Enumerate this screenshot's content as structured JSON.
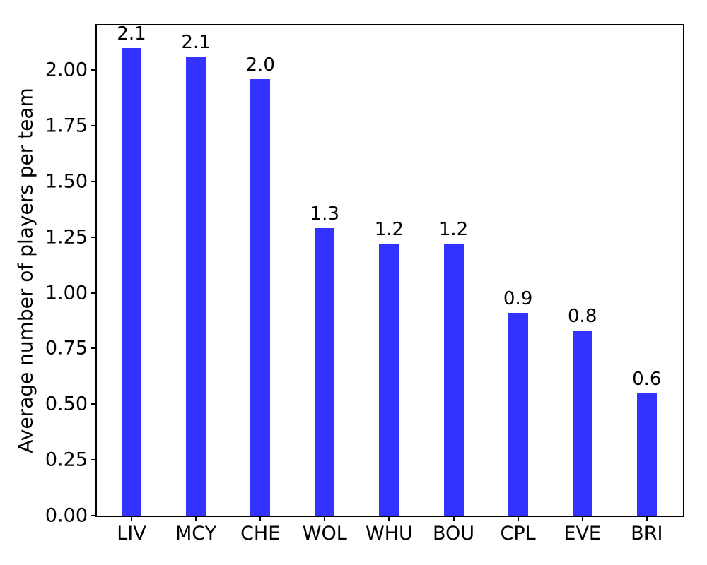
{
  "chart_data": {
    "type": "bar",
    "title": "",
    "xlabel": "",
    "ylabel": "Average number of players per team",
    "categories": [
      "LIV",
      "MCY",
      "CHE",
      "WOL",
      "WHU",
      "BOU",
      "CPL",
      "EVE",
      "BRI"
    ],
    "values": [
      2.1,
      2.06,
      1.96,
      1.29,
      1.22,
      1.22,
      0.91,
      0.83,
      0.55
    ],
    "bar_labels": [
      "2.1",
      "2.1",
      "2.0",
      "1.3",
      "1.2",
      "1.2",
      "0.9",
      "0.8",
      "0.6"
    ],
    "yticks": [
      "0.00",
      "0.25",
      "0.50",
      "0.75",
      "1.00",
      "1.25",
      "1.50",
      "1.75",
      "2.00"
    ],
    "ylim": [
      0,
      2.2
    ],
    "grid": false,
    "legend": null,
    "bar_color": "#3333ff",
    "text_color": "#000000",
    "background_color": "#ffffff"
  }
}
